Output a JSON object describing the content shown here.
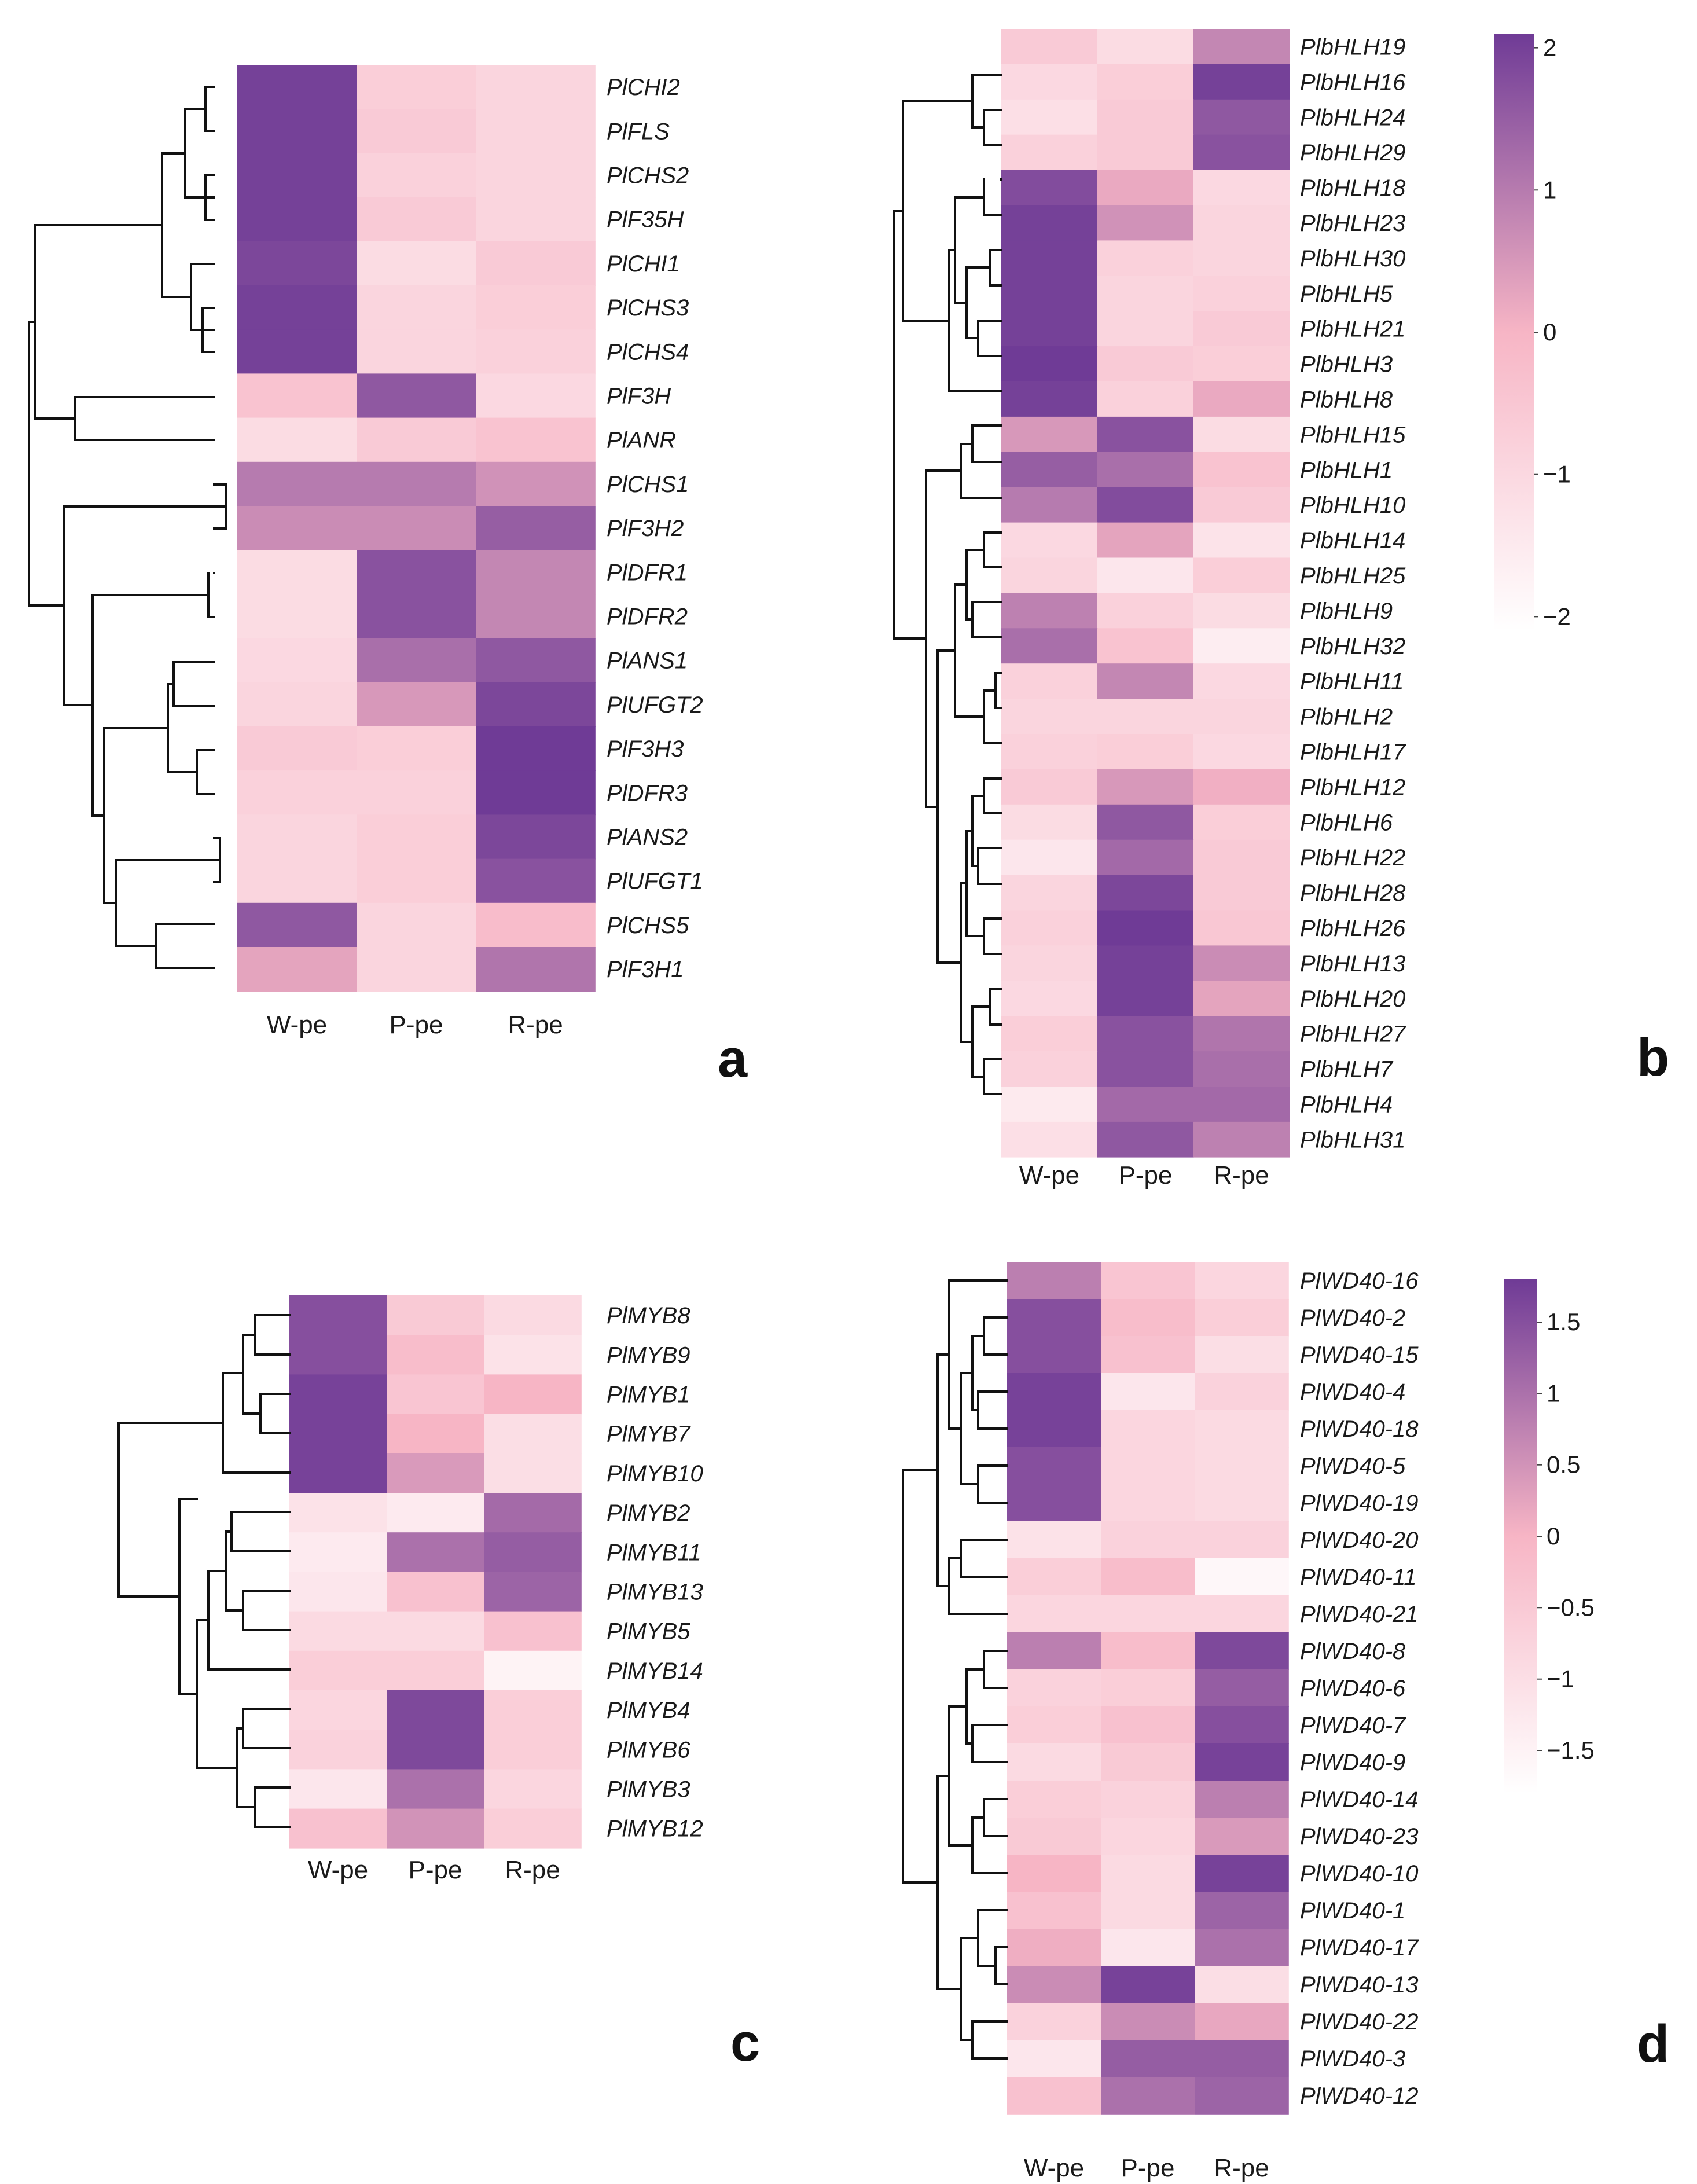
{
  "figure": {
    "colormap": {
      "low": "#ffffff",
      "mid": "#f7b5c5",
      "high": "#6f3b96"
    },
    "columns": [
      "W-pe",
      "P-pe",
      "R-pe"
    ]
  },
  "chart_data": [
    {
      "type": "heatmap",
      "panel": "a",
      "columns": [
        "W-pe",
        "P-pe",
        "R-pe"
      ],
      "rows": [
        "PlCHI2",
        "PlFLS",
        "PlCHS2",
        "PlF35H",
        "PlCHI1",
        "PlCHS3",
        "PlCHS4",
        "PlF3H",
        "PlANR",
        "PlCHS1",
        "PlF3H2",
        "PlDFR1",
        "PlDFR2",
        "PlANS1",
        "PlUFGT2",
        "PlF3H3",
        "PlDFR3",
        "PlANS2",
        "PlUFGT1",
        "PlCHS5",
        "PlF3H1"
      ],
      "values": [
        [
          2.0,
          -0.7,
          -0.9
        ],
        [
          2.0,
          -0.6,
          -0.9
        ],
        [
          2.0,
          -0.8,
          -0.9
        ],
        [
          2.0,
          -0.6,
          -0.9
        ],
        [
          1.9,
          -1.1,
          -0.6
        ],
        [
          2.0,
          -0.9,
          -0.7
        ],
        [
          2.0,
          -0.9,
          -0.8
        ],
        [
          -0.4,
          1.6,
          -1.0
        ],
        [
          -1.1,
          -0.6,
          -0.4
        ],
        [
          1.0,
          1.0,
          0.6
        ],
        [
          0.7,
          0.7,
          1.5
        ],
        [
          -1.1,
          1.7,
          0.8
        ],
        [
          -1.1,
          1.7,
          0.8
        ],
        [
          -1.0,
          1.2,
          1.6
        ],
        [
          -0.9,
          0.5,
          1.9
        ],
        [
          -0.6,
          -0.7,
          2.2
        ],
        [
          -0.8,
          -0.8,
          2.2
        ],
        [
          -0.9,
          -0.7,
          1.9
        ],
        [
          -0.9,
          -0.7,
          1.7
        ],
        [
          1.6,
          -0.9,
          -0.2
        ],
        [
          0.3,
          -0.9,
          1.1
        ]
      ]
    },
    {
      "type": "heatmap",
      "panel": "b",
      "columns": [
        "W-pe",
        "P-pe",
        "R-pe"
      ],
      "rows": [
        "PlbHLH19",
        "PlbHLH16",
        "PlbHLH24",
        "PlbHLH29",
        "PlbHLH18",
        "PlbHLH23",
        "PlbHLH30",
        "PlbHLH5",
        "PlbHLH21",
        "PlbHLH3",
        "PlbHLH8",
        "PlbHLH15",
        "PlbHLH1",
        "PlbHLH10",
        "PlbHLH14",
        "PlbHLH25",
        "PlbHLH9",
        "PlbHLH32",
        "PlbHLH11",
        "PlbHLH2",
        "PlbHLH17",
        "PlbHLH12",
        "PlbHLH6",
        "PlbHLH22",
        "PlbHLH28",
        "PlbHLH26",
        "PlbHLH13",
        "PlbHLH20",
        "PlbHLH27",
        "PlbHLH7",
        "PlbHLH4",
        "PlbHLH31"
      ],
      "values": [
        [
          -0.6,
          -1.1,
          0.8
        ],
        [
          -1.0,
          -0.7,
          2.0
        ],
        [
          -1.2,
          -0.6,
          1.6
        ],
        [
          -0.8,
          -0.6,
          1.7
        ],
        [
          1.8,
          0.2,
          -1.0
        ],
        [
          2.0,
          0.6,
          -0.9
        ],
        [
          2.0,
          -0.8,
          -0.9
        ],
        [
          2.0,
          -0.9,
          -0.8
        ],
        [
          2.0,
          -0.9,
          -0.6
        ],
        [
          2.1,
          -0.6,
          -0.7
        ],
        [
          2.0,
          -0.8,
          0.2
        ],
        [
          0.5,
          1.7,
          -1.1
        ],
        [
          1.5,
          1.2,
          -0.4
        ],
        [
          1.0,
          1.8,
          -0.6
        ],
        [
          -1.0,
          0.3,
          -1.3
        ],
        [
          -0.9,
          -1.4,
          -0.7
        ],
        [
          0.9,
          -0.8,
          -1.1
        ],
        [
          1.2,
          -0.4,
          -1.6
        ],
        [
          -0.8,
          0.8,
          -1.0
        ],
        [
          -0.9,
          -0.9,
          -0.9
        ],
        [
          -0.8,
          -0.7,
          -1.0
        ],
        [
          -0.6,
          0.5,
          0.1
        ],
        [
          -1.1,
          1.6,
          -0.7
        ],
        [
          -1.4,
          1.3,
          -0.6
        ],
        [
          -0.9,
          1.9,
          -0.6
        ],
        [
          -0.8,
          2.1,
          -0.5
        ],
        [
          -0.9,
          2.0,
          0.7
        ],
        [
          -1.0,
          2.0,
          0.3
        ],
        [
          -0.7,
          1.7,
          1.1
        ],
        [
          -0.8,
          1.7,
          1.2
        ],
        [
          -1.5,
          1.3,
          1.3
        ],
        [
          -1.2,
          1.6,
          0.9
        ]
      ]
    },
    {
      "type": "heatmap",
      "panel": "c",
      "columns": [
        "W-pe",
        "P-pe",
        "R-pe"
      ],
      "rows": [
        "PlMYB8",
        "PlMYB9",
        "PlMYB1",
        "PlMYB7",
        "PlMYB10",
        "PlMYB2",
        "PlMYB11",
        "PlMYB13",
        "PlMYB5",
        "PlMYB14",
        "PlMYB4",
        "PlMYB6",
        "PlMYB3",
        "PlMYB12"
      ],
      "values": [
        [
          1.5,
          -0.5,
          -0.9
        ],
        [
          1.5,
          -0.2,
          -1.1
        ],
        [
          1.7,
          -0.4,
          0.0
        ],
        [
          1.7,
          0.0,
          -1.0
        ],
        [
          1.7,
          0.4,
          -1.0
        ],
        [
          -1.1,
          -1.3,
          1.1
        ],
        [
          -1.3,
          1.0,
          1.3
        ],
        [
          -1.2,
          -0.3,
          1.2
        ],
        [
          -0.9,
          -0.9,
          -0.3
        ],
        [
          -0.6,
          -0.6,
          -1.5
        ],
        [
          -0.8,
          1.6,
          -0.6
        ],
        [
          -0.7,
          1.6,
          -0.6
        ],
        [
          -1.2,
          1.0,
          -0.8
        ],
        [
          -0.3,
          0.5,
          -0.6
        ]
      ]
    },
    {
      "type": "heatmap",
      "panel": "d",
      "columns": [
        "W-pe",
        "P-pe",
        "R-pe"
      ],
      "rows": [
        "PlWD40-16",
        "PlWD40-2",
        "PlWD40-15",
        "PlWD40-4",
        "PlWD40-18",
        "PlWD40-5",
        "PlWD40-19",
        "PlWD40-20",
        "PlWD40-11",
        "PlWD40-21",
        "PlWD40-8",
        "PlWD40-6",
        "PlWD40-7",
        "PlWD40-9",
        "PlWD40-14",
        "PlWD40-23",
        "PlWD40-10",
        "PlWD40-1",
        "PlWD40-17",
        "PlWD40-13",
        "PlWD40-22",
        "PlWD40-3",
        "PlWD40-12"
      ],
      "values": [
        [
          0.8,
          -0.4,
          -0.8
        ],
        [
          1.5,
          -0.2,
          -0.6
        ],
        [
          1.5,
          -0.3,
          -1.0
        ],
        [
          1.7,
          -1.2,
          -0.7
        ],
        [
          1.7,
          -0.8,
          -0.9
        ],
        [
          1.5,
          -0.8,
          -0.9
        ],
        [
          1.5,
          -0.8,
          -0.9
        ],
        [
          -1.1,
          -0.7,
          -0.7
        ],
        [
          -0.6,
          -0.2,
          -1.6
        ],
        [
          -0.8,
          -0.8,
          -0.8
        ],
        [
          0.8,
          -0.2,
          1.6
        ],
        [
          -0.7,
          -0.6,
          1.3
        ],
        [
          -0.6,
          -0.3,
          1.5
        ],
        [
          -0.9,
          -0.5,
          1.7
        ],
        [
          -0.6,
          -0.7,
          0.8
        ],
        [
          -0.5,
          -0.8,
          0.4
        ],
        [
          0.0,
          -0.9,
          1.7
        ],
        [
          -0.3,
          -0.9,
          1.2
        ],
        [
          0.1,
          -1.2,
          1.0
        ],
        [
          0.6,
          1.7,
          -1.0
        ],
        [
          -0.7,
          0.6,
          0.2
        ],
        [
          -1.2,
          1.3,
          1.3
        ],
        [
          -0.3,
          1.0,
          1.2
        ]
      ]
    }
  ],
  "panels": {
    "a": {
      "letter": "a",
      "columns": [
        "W-pe",
        "P-pe",
        "R-pe"
      ],
      "rows": [
        "PlCHI2",
        "PlFLS",
        "PlCHS2",
        "PlF35H",
        "PlCHI1",
        "PlCHS3",
        "PlCHS4",
        "PlF3H",
        "PlANR",
        "PlCHS1",
        "PlF3H2",
        "PlDFR1",
        "PlDFR2",
        "PlANS1",
        "PlUFGT2",
        "PlF3H3",
        "PlDFR3",
        "PlANS2",
        "PlUFGT1",
        "PlCHS5",
        "PlF3H1"
      ]
    },
    "b": {
      "letter": "b",
      "columns": [
        "W-pe",
        "P-pe",
        "R-pe"
      ],
      "rows": [
        "PlbHLH19",
        "PlbHLH16",
        "PlbHLH24",
        "PlbHLH29",
        "PlbHLH18",
        "PlbHLH23",
        "PlbHLH30",
        "PlbHLH5",
        "PlbHLH21",
        "PlbHLH3",
        "PlbHLH8",
        "PlbHLH15",
        "PlbHLH1",
        "PlbHLH10",
        "PlbHLH14",
        "PlbHLH25",
        "PlbHLH9",
        "PlbHLH32",
        "PlbHLH11",
        "PlbHLH2",
        "PlbHLH17",
        "PlbHLH12",
        "PlbHLH6",
        "PlbHLH22",
        "PlbHLH28",
        "PlbHLH26",
        "PlbHLH13",
        "PlbHLH20",
        "PlbHLH27",
        "PlbHLH7",
        "PlbHLH4",
        "PlbHLH31"
      ],
      "colorbar": {
        "ticks": [
          "2",
          "1",
          "0",
          "−1",
          "−2"
        ],
        "tick_values": [
          2,
          1,
          0,
          -1,
          -2
        ],
        "range": [
          -2.1,
          2.1
        ]
      }
    },
    "c": {
      "letter": "c",
      "columns": [
        "W-pe",
        "P-pe",
        "R-pe"
      ],
      "rows": [
        "PlMYB8",
        "PlMYB9",
        "PlMYB1",
        "PlMYB7",
        "PlMYB10",
        "PlMYB2",
        "PlMYB11",
        "PlMYB13",
        "PlMYB5",
        "PlMYB14",
        "PlMYB4",
        "PlMYB6",
        "PlMYB3",
        "PlMYB12"
      ]
    },
    "d": {
      "letter": "d",
      "columns": [
        "W-pe",
        "P-pe",
        "R-pe"
      ],
      "rows": [
        "PlWD40-16",
        "PlWD40-2",
        "PlWD40-15",
        "PlWD40-4",
        "PlWD40-18",
        "PlWD40-5",
        "PlWD40-19",
        "PlWD40-20",
        "PlWD40-11",
        "PlWD40-21",
        "PlWD40-8",
        "PlWD40-6",
        "PlWD40-7",
        "PlWD40-9",
        "PlWD40-14",
        "PlWD40-23",
        "PlWD40-10",
        "PlWD40-1",
        "PlWD40-17",
        "PlWD40-13",
        "PlWD40-22",
        "PlWD40-3",
        "PlWD40-12"
      ],
      "colorbar": {
        "ticks": [
          "1.5",
          "1",
          "0.5",
          "0",
          "−0.5",
          "−1",
          "−1.5"
        ],
        "tick_values": [
          1.5,
          1,
          0.5,
          0,
          -0.5,
          -1,
          -1.5
        ],
        "range": [
          -1.8,
          1.8
        ]
      }
    }
  }
}
